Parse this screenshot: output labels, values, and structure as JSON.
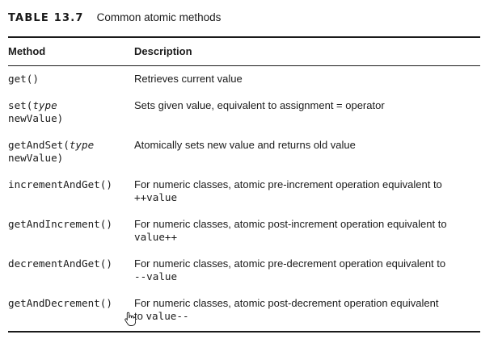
{
  "caption": {
    "label": "TABLE 13.7",
    "title": "Common atomic methods"
  },
  "table": {
    "headers": {
      "method": "Method",
      "description": "Description"
    },
    "rows": [
      {
        "method": "get()",
        "description": "Retrieves current value"
      },
      {
        "method_pre": "set(",
        "method_type": "type",
        "method_post": "newValue)",
        "description": "Sets given value, equivalent to assignment = operator"
      },
      {
        "method_pre": "getAndSet(",
        "method_type": "type",
        "method_post": "newValue)",
        "description": "Atomically sets new value and returns old value"
      },
      {
        "method": "incrementAndGet()",
        "description": "For numeric classes, atomic pre-increment operation equivalent to",
        "code": "++value"
      },
      {
        "method": "getAndIncrement()",
        "description": "For numeric classes, atomic post-increment operation equivalent to",
        "code": "value++"
      },
      {
        "method": "decrementAndGet()",
        "description": "For numeric classes, atomic pre-decrement operation equivalent to",
        "code": "--value"
      },
      {
        "method": "getAndDecrement()",
        "description": "For numeric classes, atomic post-decrement operation equivalent",
        "desc_tail": "to",
        "code": "value--"
      }
    ]
  },
  "cursor": {
    "icon": "hand-pointer-icon"
  }
}
